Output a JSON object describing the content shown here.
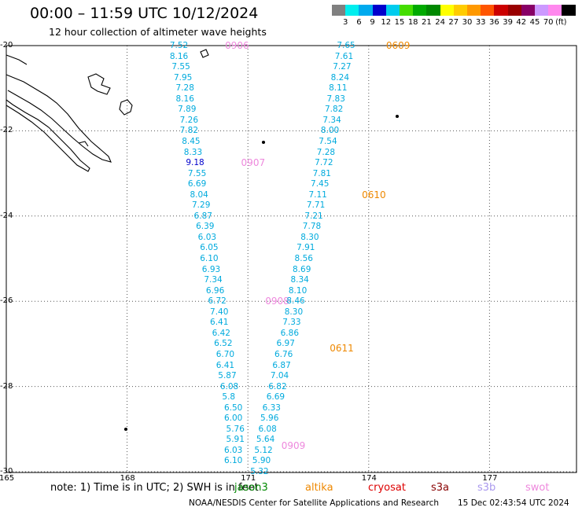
{
  "header": {
    "title": "00:00 – 11:59 UTC 10/12/2024",
    "subtitle": "12 hour collection of altimeter wave heights"
  },
  "scale": {
    "labels": [
      "3",
      "6",
      "9",
      "12",
      "15",
      "18",
      "21",
      "24",
      "27",
      "30",
      "33",
      "36",
      "39",
      "42",
      "45",
      "70"
    ],
    "colors": [
      "#808080",
      "#00eeee",
      "#00aaee",
      "#0000cc",
      "#00ccee",
      "#44dd00",
      "#00aa00",
      "#008800",
      "#ffff00",
      "#ffcc00",
      "#ff9900",
      "#ff5500",
      "#cc0000",
      "#990000",
      "#880066",
      "#cc99ff",
      "#ff88ee",
      "#000000"
    ],
    "unit": "(ft)"
  },
  "axes": {
    "lat_labels": [
      "-20",
      "-22",
      "-24",
      "-26",
      "-28",
      "-30"
    ],
    "lon_labels": [
      "165",
      "168",
      "171",
      "174",
      "177"
    ]
  },
  "tracks": [
    {
      "satellite": "swot",
      "color": "#00aadd",
      "points": [
        {
          "lon": 169.45,
          "lat": -20.0,
          "v": "7.52"
        },
        {
          "lon": 169.45,
          "lat": -20.25,
          "v": "8.16"
        },
        {
          "lon": 169.5,
          "lat": -20.5,
          "v": "7.55"
        },
        {
          "lon": 169.55,
          "lat": -20.75,
          "v": "7.95"
        },
        {
          "lon": 169.6,
          "lat": -21.0,
          "v": "7.28"
        },
        {
          "lon": 169.6,
          "lat": -21.25,
          "v": "8.16"
        },
        {
          "lon": 169.65,
          "lat": -21.5,
          "v": "7.89"
        },
        {
          "lon": 169.7,
          "lat": -21.75,
          "v": "7.26"
        },
        {
          "lon": 169.7,
          "lat": -22.0,
          "v": "7.82"
        },
        {
          "lon": 169.75,
          "lat": -22.25,
          "v": "8.45"
        },
        {
          "lon": 169.8,
          "lat": -22.5,
          "v": "8.33"
        },
        {
          "lon": 169.85,
          "lat": -22.75,
          "v": "9.18",
          "color": "#0000cc"
        },
        {
          "lon": 169.9,
          "lat": -23.0,
          "v": "7.55"
        },
        {
          "lon": 169.9,
          "lat": -23.25,
          "v": "6.69"
        },
        {
          "lon": 169.95,
          "lat": -23.5,
          "v": "8.04"
        },
        {
          "lon": 170.0,
          "lat": -23.75,
          "v": "7.29"
        },
        {
          "lon": 170.05,
          "lat": -24.0,
          "v": "6.87"
        },
        {
          "lon": 170.1,
          "lat": -24.25,
          "v": "6.39"
        },
        {
          "lon": 170.15,
          "lat": -24.5,
          "v": "6.03"
        },
        {
          "lon": 170.2,
          "lat": -24.75,
          "v": "6.05"
        },
        {
          "lon": 170.2,
          "lat": -25.0,
          "v": "6.10"
        },
        {
          "lon": 170.25,
          "lat": -25.25,
          "v": "6.93"
        },
        {
          "lon": 170.3,
          "lat": -25.5,
          "v": "7.34"
        },
        {
          "lon": 170.35,
          "lat": -25.75,
          "v": "6.96"
        },
        {
          "lon": 170.4,
          "lat": -26.0,
          "v": "6.72"
        },
        {
          "lon": 170.45,
          "lat": -26.25,
          "v": "7.40"
        },
        {
          "lon": 170.45,
          "lat": -26.5,
          "v": "6.41"
        },
        {
          "lon": 170.5,
          "lat": -26.75,
          "v": "6.42"
        },
        {
          "lon": 170.55,
          "lat": -27.0,
          "v": "6.52"
        },
        {
          "lon": 170.6,
          "lat": -27.25,
          "v": "6.70"
        },
        {
          "lon": 170.6,
          "lat": -27.5,
          "v": "6.41"
        },
        {
          "lon": 170.65,
          "lat": -27.75,
          "v": "5.87"
        },
        {
          "lon": 170.7,
          "lat": -28.0,
          "v": "6.08"
        },
        {
          "lon": 170.75,
          "lat": -28.25,
          "v": "5.8"
        },
        {
          "lon": 170.8,
          "lat": -28.5,
          "v": "6.50"
        },
        {
          "lon": 170.8,
          "lat": -28.75,
          "v": "6.00"
        },
        {
          "lon": 170.85,
          "lat": -29.0,
          "v": "5.76"
        },
        {
          "lon": 170.85,
          "lat": -29.25,
          "v": "5.91"
        },
        {
          "lon": 170.8,
          "lat": -29.5,
          "v": "6.03"
        },
        {
          "lon": 170.8,
          "lat": -29.75,
          "v": "6.10"
        }
      ],
      "time_labels": [
        {
          "lon": 170.9,
          "lat": -20.0,
          "v": "0906",
          "color": "#ee88dd"
        },
        {
          "lon": 171.3,
          "lat": -22.75,
          "v": "0907",
          "color": "#ee88dd"
        },
        {
          "lon": 171.9,
          "lat": -26.0,
          "v": "0908",
          "color": "#ee88dd"
        },
        {
          "lon": 172.3,
          "lat": -29.4,
          "v": "0909",
          "color": "#ee88dd"
        }
      ]
    },
    {
      "satellite": "altika",
      "color": "#00aadd",
      "points": [
        {
          "lon": 173.6,
          "lat": -20.0,
          "v": "7.65"
        },
        {
          "lon": 173.55,
          "lat": -20.25,
          "v": "7.61"
        },
        {
          "lon": 173.5,
          "lat": -20.5,
          "v": "7.27"
        },
        {
          "lon": 173.45,
          "lat": -20.75,
          "v": "8.24"
        },
        {
          "lon": 173.4,
          "lat": -21.0,
          "v": "8.11"
        },
        {
          "lon": 173.35,
          "lat": -21.25,
          "v": "7.83"
        },
        {
          "lon": 173.3,
          "lat": -21.5,
          "v": "7.82"
        },
        {
          "lon": 173.25,
          "lat": -21.75,
          "v": "7.34"
        },
        {
          "lon": 173.2,
          "lat": -22.0,
          "v": "8.00"
        },
        {
          "lon": 173.15,
          "lat": -22.25,
          "v": "7.54"
        },
        {
          "lon": 173.1,
          "lat": -22.5,
          "v": "7.28"
        },
        {
          "lon": 173.05,
          "lat": -22.75,
          "v": "7.72"
        },
        {
          "lon": 173.0,
          "lat": -23.0,
          "v": "7.81"
        },
        {
          "lon": 172.95,
          "lat": -23.25,
          "v": "7.45"
        },
        {
          "lon": 172.9,
          "lat": -23.5,
          "v": "7.11"
        },
        {
          "lon": 172.85,
          "lat": -23.75,
          "v": "7.71"
        },
        {
          "lon": 172.8,
          "lat": -24.0,
          "v": "7.21"
        },
        {
          "lon": 172.75,
          "lat": -24.25,
          "v": "7.78"
        },
        {
          "lon": 172.7,
          "lat": -24.5,
          "v": "8.30"
        },
        {
          "lon": 172.6,
          "lat": -24.75,
          "v": "7.91"
        },
        {
          "lon": 172.55,
          "lat": -25.0,
          "v": "8.56"
        },
        {
          "lon": 172.5,
          "lat": -25.25,
          "v": "8.69"
        },
        {
          "lon": 172.45,
          "lat": -25.5,
          "v": "8.34"
        },
        {
          "lon": 172.4,
          "lat": -25.75,
          "v": "8.10"
        },
        {
          "lon": 172.35,
          "lat": -26.0,
          "v": "8.46"
        },
        {
          "lon": 172.3,
          "lat": -26.25,
          "v": "8.30"
        },
        {
          "lon": 172.25,
          "lat": -26.5,
          "v": "7.33"
        },
        {
          "lon": 172.2,
          "lat": -26.75,
          "v": "6.86"
        },
        {
          "lon": 172.1,
          "lat": -27.0,
          "v": "6.97"
        },
        {
          "lon": 172.05,
          "lat": -27.25,
          "v": "6.76"
        },
        {
          "lon": 172.0,
          "lat": -27.5,
          "v": "6.87"
        },
        {
          "lon": 171.95,
          "lat": -27.75,
          "v": "7.04"
        },
        {
          "lon": 171.9,
          "lat": -28.0,
          "v": "6.82"
        },
        {
          "lon": 171.85,
          "lat": -28.25,
          "v": "6.69"
        },
        {
          "lon": 171.75,
          "lat": -28.5,
          "v": "6.33"
        },
        {
          "lon": 171.7,
          "lat": -28.75,
          "v": "5.96"
        },
        {
          "lon": 171.65,
          "lat": -29.0,
          "v": "6.08"
        },
        {
          "lon": 171.6,
          "lat": -29.25,
          "v": "5.64"
        },
        {
          "lon": 171.55,
          "lat": -29.5,
          "v": "5.12"
        },
        {
          "lon": 171.5,
          "lat": -29.75,
          "v": "5.90"
        },
        {
          "lon": 171.45,
          "lat": -30.0,
          "v": "5.32"
        }
      ],
      "time_labels": [
        {
          "lon": 174.9,
          "lat": -20.0,
          "v": "0609",
          "color": "#ee8800"
        },
        {
          "lon": 174.3,
          "lat": -23.5,
          "v": "0610",
          "color": "#ee8800"
        },
        {
          "lon": 173.5,
          "lat": -27.1,
          "v": "0611",
          "color": "#ee8800"
        }
      ]
    }
  ],
  "footer": {
    "note": "note:  1) Time is in UTC;  2) SWH is in feet",
    "satellites": [
      {
        "name": "jason3",
        "color": "#008800"
      },
      {
        "name": "altika",
        "color": "#ee8800"
      },
      {
        "name": "cryosat",
        "color": "#dd0000"
      },
      {
        "name": "s3a",
        "color": "#880000"
      },
      {
        "name": "s3b",
        "color": "#aa99ee"
      },
      {
        "name": "swot",
        "color": "#ee88dd"
      }
    ],
    "credit": "NOAA/NESDIS Center for Satellite Applications and Research",
    "generated": "15 Dec 02:43:54 UTC 2024"
  }
}
